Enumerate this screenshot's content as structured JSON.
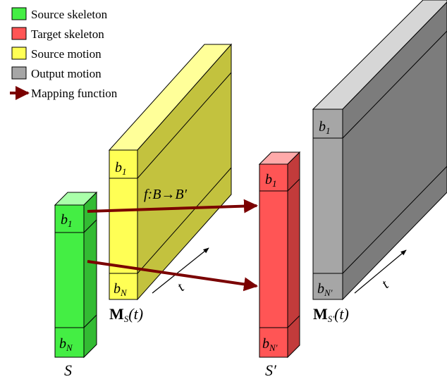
{
  "legend": {
    "source_skeleton": "Source skeleton",
    "target_skeleton": "Target skeleton",
    "source_motion": "Source motion",
    "output_motion": "Output motion",
    "mapping_function": "Mapping function"
  },
  "colors": {
    "source_skeleton": "#44ee44",
    "target_skeleton": "#ff5555",
    "source_motion": "#ffff55",
    "output_motion": "#a6a6a6",
    "mapping_arrow": "#7a0000"
  },
  "labels": {
    "b": "b",
    "sub_1": "1",
    "sub_N": "N",
    "sub_N_prime": "N′",
    "mapping": "f:B→B′",
    "time": "t",
    "source_skeleton_symbol": "S",
    "target_skeleton_symbol": "S′",
    "source_motion_M": "M",
    "source_motion_sub": "S",
    "target_motion_sub": "S′",
    "motion_arg": "(t)"
  }
}
